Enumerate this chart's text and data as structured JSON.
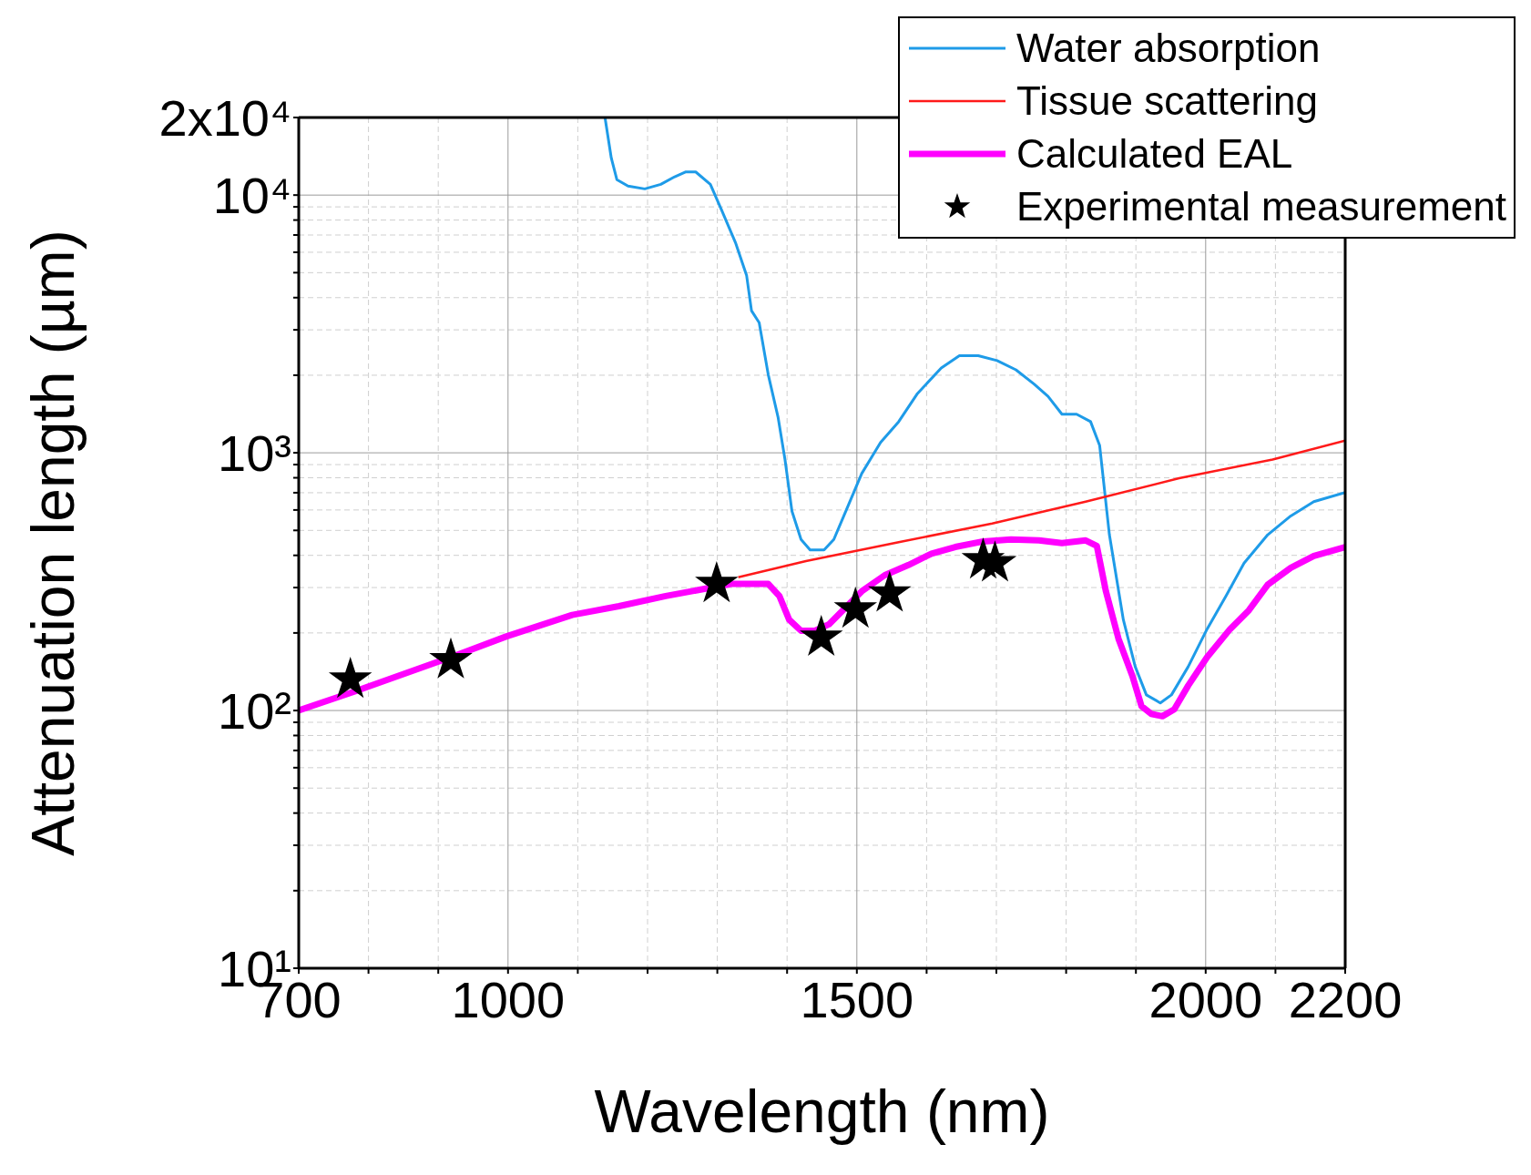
{
  "chart_data": {
    "type": "line",
    "xlabel": "Wavelength (nm)",
    "ylabel": "Attenuation length (µm)",
    "log": "y",
    "grid": true,
    "legend": "top right",
    "xlim": [
      700,
      2200
    ],
    "xticks": [
      700,
      {
        "value": 800,
        "label": null
      },
      {
        "value": 900,
        "label": null
      },
      1000,
      {
        "value": 1100,
        "label": null
      },
      {
        "value": 1200,
        "label": null
      },
      {
        "value": 1300,
        "label": null
      },
      {
        "value": 1400,
        "label": null
      },
      1500,
      {
        "value": 1600,
        "label": null
      },
      {
        "value": 1700,
        "label": null
      },
      {
        "value": 1800,
        "label": null
      },
      {
        "value": 1900,
        "label": null
      },
      2000,
      {
        "value": 2100,
        "label": null
      },
      2200
    ],
    "ylim": [
      10,
      20000
    ],
    "yticks": [
      {
        "value": 10,
        "label": "10¹"
      },
      {
        "value": 20,
        "label": null
      },
      {
        "value": 30,
        "label": null
      },
      {
        "value": 40,
        "label": null
      },
      {
        "value": 50,
        "label": null
      },
      {
        "value": 60,
        "label": null
      },
      {
        "value": 70,
        "label": null
      },
      {
        "value": 80,
        "label": null
      },
      {
        "value": 90,
        "label": null
      },
      {
        "value": 100,
        "label": "10²"
      },
      {
        "value": 200,
        "label": null
      },
      {
        "value": 300,
        "label": null
      },
      {
        "value": 400,
        "label": null
      },
      {
        "value": 500,
        "label": null
      },
      {
        "value": 600,
        "label": null
      },
      {
        "value": 700,
        "label": null
      },
      {
        "value": 800,
        "label": null
      },
      {
        "value": 900,
        "label": null
      },
      {
        "value": 1000,
        "label": "10³"
      },
      {
        "value": 2000,
        "label": null
      },
      {
        "value": 3000,
        "label": null
      },
      {
        "value": 4000,
        "label": null
      },
      {
        "value": 5000,
        "label": null
      },
      {
        "value": 6000,
        "label": null
      },
      {
        "value": 7000,
        "label": null
      },
      {
        "value": 8000,
        "label": null
      },
      {
        "value": 9000,
        "label": null
      },
      {
        "value": 10000,
        "label": "10⁴"
      },
      {
        "value": 20000,
        "label": "2x10⁴"
      }
    ],
    "series": [
      {
        "name": "Water absorption",
        "color": "#1e9be8",
        "x": [
          1139,
          1148,
          1156,
          1172,
          1196,
          1219,
          1239,
          1255,
          1269,
          1290,
          1306,
          1326,
          1342,
          1349,
          1360,
          1373,
          1387,
          1397,
          1407,
          1420,
          1433,
          1453,
          1467,
          1487,
          1507,
          1534,
          1560,
          1587,
          1621,
          1647,
          1674,
          1701,
          1728,
          1754,
          1774,
          1794,
          1815,
          1835,
          1848,
          1862,
          1882,
          1899,
          1915,
          1935,
          1951,
          1975,
          2002,
          2029,
          2055,
          2089,
          2122,
          2155,
          2200
        ],
        "values": [
          20000,
          13930,
          11480,
          10840,
          10570,
          11010,
          11780,
          12300,
          12300,
          11010,
          8770,
          6540,
          4870,
          3560,
          3200,
          2010,
          1377,
          942,
          593,
          461,
          420,
          420,
          461,
          619,
          831,
          1097,
          1321,
          1700,
          2133,
          2381,
          2381,
          2280,
          2099,
          1849,
          1656,
          1412,
          1412,
          1321,
          1069,
          481,
          225,
          148,
          115,
          107,
          115,
          148,
          207,
          278,
          373,
          481,
          569,
          646,
          702
        ]
      },
      {
        "name": "Tissue scattering",
        "color": "#ff1a1a",
        "x": [
          1330,
          1427,
          1560,
          1694,
          1828,
          1962,
          2096,
          2200
        ],
        "values": [
          329,
          380,
          450,
          532,
          646,
          797,
          942,
          1116
        ]
      },
      {
        "name": "Calculated EAL",
        "color": "#ff00ff",
        "x": [
          700,
          774,
          918,
          998,
          1092,
          1159,
          1226,
          1320,
          1353,
          1373,
          1389,
          1403,
          1420,
          1440,
          1460,
          1480,
          1507,
          1540,
          1574,
          1607,
          1641,
          1681,
          1721,
          1761,
          1794,
          1828,
          1844,
          1857,
          1875,
          1895,
          1908,
          1922,
          1938,
          1955,
          1975,
          2002,
          2035,
          2062,
          2089,
          2122,
          2155,
          2200
        ],
        "values": [
          100,
          117,
          161,
          194,
          235,
          254,
          278,
          310,
          310,
          310,
          278,
          225,
          204,
          204,
          216,
          245,
          290,
          335,
          367,
          406,
          431,
          453,
          461,
          457,
          446,
          457,
          435,
          290,
          190,
          136,
          104,
          97,
          95,
          101,
          125,
          161,
          207,
          245,
          308,
          358,
          398,
          431
        ]
      },
      {
        "name": "Experimental measurement",
        "type": "scatter",
        "marker": "star",
        "color": "#000000",
        "x": [
          774,
          918,
          1299,
          1449,
          1498,
          1547,
          1681,
          1698
        ],
        "values": [
          132,
          157,
          310,
          192,
          247,
          285,
          383,
          373
        ]
      }
    ]
  }
}
